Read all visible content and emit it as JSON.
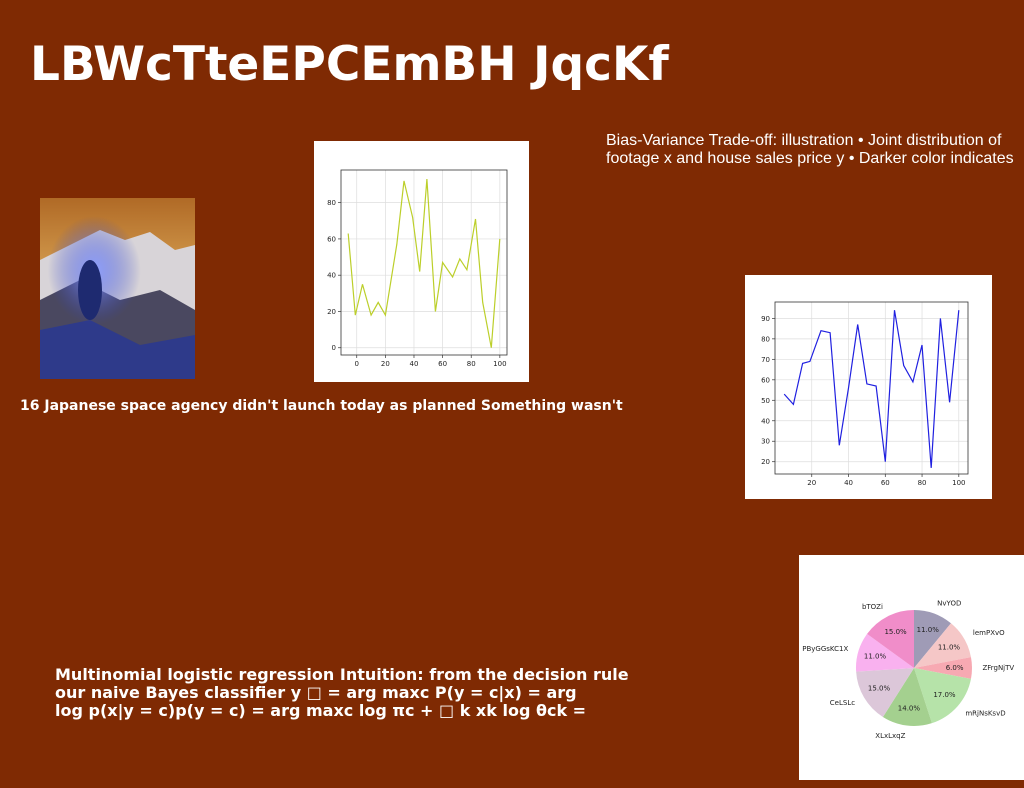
{
  "title": "LBWcTteEPCEmBH JqcKf",
  "description": [
    "Bias-Variance Trade-off: illustration • Joint distribution of",
    "footage x and house sales price y • Darker color indicates"
  ],
  "caption": "16 Japanese space agency didn't launch today as planned Something wasn't",
  "body": [
    "Multinomial logistic regression Intuition: from the decision rule",
    "our naive Bayes classifier y □ = arg maxc P(y = c|x) = arg",
    "log p(x|y = c)p(y = c) = arg maxc log πc + □ k xk log θck ="
  ],
  "chart_data": [
    {
      "type": "line",
      "color": "#bccf2a",
      "grid": true,
      "x": [
        -6,
        -1,
        4,
        10,
        15,
        20,
        28,
        33,
        39,
        44,
        49,
        55,
        60,
        67,
        72,
        77,
        83,
        88,
        94,
        100
      ],
      "values": [
        63,
        18,
        35,
        18,
        25,
        18,
        57,
        92,
        72,
        42,
        93,
        20,
        47,
        39,
        49,
        43,
        71,
        25,
        0,
        60
      ],
      "xlim": [
        -11,
        105
      ],
      "ylim": [
        -4,
        98
      ],
      "xticks": [
        0,
        20,
        40,
        60,
        80,
        100
      ],
      "yticks": [
        0,
        20,
        40,
        60,
        80
      ]
    },
    {
      "type": "line",
      "color": "#2020e0",
      "grid": true,
      "x": [
        5,
        10,
        15,
        19,
        25,
        30,
        35,
        40,
        45,
        50,
        55,
        60,
        65,
        70,
        75,
        80,
        85,
        90,
        95,
        100
      ],
      "values": [
        53,
        48,
        68,
        69,
        84,
        83,
        28,
        56,
        87,
        58,
        57,
        20,
        94,
        67,
        59,
        77,
        17,
        90,
        49,
        94
      ],
      "xlim": [
        0,
        105
      ],
      "ylim": [
        14,
        98
      ],
      "xticks": [
        20,
        40,
        60,
        80,
        100
      ],
      "yticks": [
        20,
        30,
        40,
        50,
        60,
        70,
        80,
        90
      ]
    },
    {
      "type": "pie",
      "categories": [
        "NvYOD",
        "lemPXvO",
        "ZFrgNjTV",
        "mRjNsKsvD",
        "XLxLxqZ",
        "CeLSLc",
        "PByGGsKC1X",
        "bTOZi"
      ],
      "values": [
        11,
        11,
        6,
        17,
        14,
        15,
        11,
        15
      ],
      "value_labels": [
        "11.0%",
        "11.0%",
        "6.0%",
        "17.0%",
        "14.0%",
        "15.0%",
        "11.0%",
        "15.0%"
      ],
      "colors": [
        "#9f9bb6",
        "#f5c7c7",
        "#f7a9b2",
        "#b6e3a9",
        "#a4d08f",
        "#dcc7d9",
        "#f9b1ef",
        "#f08dc9"
      ]
    }
  ]
}
